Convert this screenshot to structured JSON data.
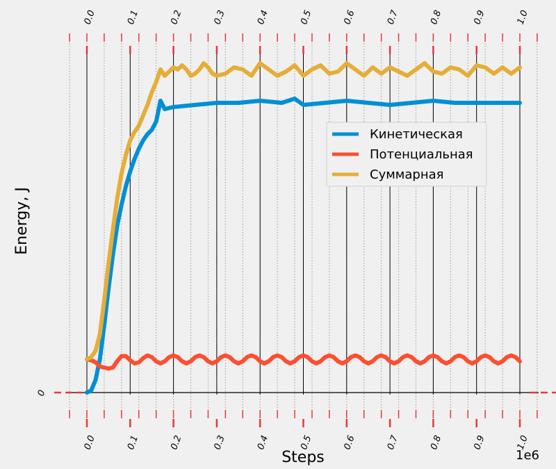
{
  "chart_data": {
    "type": "line",
    "xlabel": "Steps",
    "ylabel": "Energy, J",
    "x_offset_label": "1e6",
    "xlim": [
      0,
      1.0
    ],
    "x_ticks": [
      "0.0",
      "0.1",
      "0.2",
      "0.3",
      "0.4",
      "0.5",
      "0.6",
      "0.7",
      "0.8",
      "0.9",
      "1.0"
    ],
    "y_ticks": [
      "0"
    ],
    "grid": true,
    "legend_position": "center-right",
    "series": [
      {
        "name": "Кинетическая",
        "color": "#008fd5",
        "x": [
          0.0,
          0.01,
          0.02,
          0.03,
          0.04,
          0.05,
          0.06,
          0.07,
          0.08,
          0.09,
          0.1,
          0.11,
          0.12,
          0.13,
          0.14,
          0.15,
          0.16,
          0.17,
          0.18,
          0.2,
          0.25,
          0.3,
          0.35,
          0.4,
          0.45,
          0.48,
          0.5,
          0.55,
          0.6,
          0.65,
          0.7,
          0.75,
          0.8,
          0.85,
          0.9,
          0.95,
          1.0
        ],
        "y": [
          0.0,
          0.01,
          0.06,
          0.16,
          0.32,
          0.5,
          0.66,
          0.8,
          0.9,
          0.99,
          1.06,
          1.12,
          1.17,
          1.21,
          1.24,
          1.26,
          1.3,
          1.4,
          1.36,
          1.37,
          1.38,
          1.39,
          1.39,
          1.4,
          1.39,
          1.41,
          1.38,
          1.39,
          1.4,
          1.39,
          1.38,
          1.39,
          1.4,
          1.39,
          1.39,
          1.39,
          1.39
        ]
      },
      {
        "name": "Потенциальная",
        "color": "#fc4f30",
        "x": [
          0.0,
          0.01,
          0.02,
          0.03,
          0.04,
          0.05,
          0.06,
          0.07,
          0.08,
          0.09,
          0.1,
          0.11,
          0.12,
          0.13,
          0.14,
          0.15,
          0.16,
          0.17,
          0.18,
          0.19,
          0.2,
          0.21,
          0.22,
          0.23,
          0.24,
          0.25,
          0.26,
          0.27,
          0.28,
          0.29,
          0.3,
          0.31,
          0.32,
          0.33,
          0.34,
          0.35,
          0.36,
          0.37,
          0.38,
          0.39,
          0.4,
          0.41,
          0.42,
          0.43,
          0.44,
          0.45,
          0.46,
          0.47,
          0.48,
          0.49,
          0.5,
          0.51,
          0.52,
          0.53,
          0.54,
          0.55,
          0.56,
          0.57,
          0.58,
          0.59,
          0.6,
          0.61,
          0.62,
          0.63,
          0.64,
          0.65,
          0.66,
          0.67,
          0.68,
          0.69,
          0.7,
          0.71,
          0.72,
          0.73,
          0.74,
          0.75,
          0.76,
          0.77,
          0.78,
          0.79,
          0.8,
          0.81,
          0.82,
          0.83,
          0.84,
          0.85,
          0.86,
          0.87,
          0.88,
          0.89,
          0.9,
          0.91,
          0.92,
          0.93,
          0.94,
          0.95,
          0.96,
          0.97,
          0.98,
          0.99,
          1.0
        ],
        "y": [
          0.16,
          0.155,
          0.145,
          0.125,
          0.12,
          0.115,
          0.12,
          0.15,
          0.175,
          0.175,
          0.155,
          0.14,
          0.145,
          0.165,
          0.178,
          0.17,
          0.15,
          0.14,
          0.15,
          0.17,
          0.178,
          0.17,
          0.15,
          0.14,
          0.15,
          0.17,
          0.178,
          0.17,
          0.15,
          0.14,
          0.15,
          0.17,
          0.178,
          0.17,
          0.15,
          0.14,
          0.15,
          0.17,
          0.178,
          0.17,
          0.15,
          0.14,
          0.15,
          0.17,
          0.178,
          0.17,
          0.15,
          0.14,
          0.15,
          0.17,
          0.178,
          0.17,
          0.15,
          0.14,
          0.15,
          0.17,
          0.178,
          0.17,
          0.15,
          0.14,
          0.15,
          0.17,
          0.178,
          0.17,
          0.15,
          0.14,
          0.15,
          0.17,
          0.178,
          0.17,
          0.15,
          0.14,
          0.15,
          0.17,
          0.178,
          0.17,
          0.15,
          0.14,
          0.15,
          0.17,
          0.178,
          0.17,
          0.15,
          0.14,
          0.15,
          0.17,
          0.178,
          0.17,
          0.15,
          0.14,
          0.15,
          0.17,
          0.178,
          0.17,
          0.15,
          0.14,
          0.15,
          0.17,
          0.178,
          0.17,
          0.15
        ]
      },
      {
        "name": "Суммарная",
        "color": "#e5ae38",
        "x": [
          0.0,
          0.01,
          0.02,
          0.03,
          0.04,
          0.05,
          0.06,
          0.07,
          0.08,
          0.09,
          0.1,
          0.11,
          0.12,
          0.13,
          0.14,
          0.15,
          0.16,
          0.17,
          0.18,
          0.19,
          0.2,
          0.21,
          0.22,
          0.23,
          0.24,
          0.25,
          0.26,
          0.27,
          0.28,
          0.29,
          0.3,
          0.32,
          0.34,
          0.36,
          0.38,
          0.4,
          0.42,
          0.44,
          0.46,
          0.48,
          0.5,
          0.52,
          0.54,
          0.56,
          0.58,
          0.6,
          0.62,
          0.64,
          0.66,
          0.68,
          0.7,
          0.72,
          0.74,
          0.76,
          0.78,
          0.8,
          0.82,
          0.84,
          0.86,
          0.88,
          0.9,
          0.92,
          0.94,
          0.96,
          0.98,
          1.0
        ],
        "y": [
          0.16,
          0.17,
          0.2,
          0.28,
          0.44,
          0.62,
          0.78,
          0.93,
          1.05,
          1.14,
          1.21,
          1.25,
          1.28,
          1.33,
          1.38,
          1.44,
          1.49,
          1.55,
          1.52,
          1.54,
          1.56,
          1.55,
          1.57,
          1.55,
          1.52,
          1.53,
          1.55,
          1.58,
          1.56,
          1.53,
          1.52,
          1.53,
          1.56,
          1.55,
          1.52,
          1.58,
          1.55,
          1.52,
          1.54,
          1.57,
          1.52,
          1.55,
          1.57,
          1.53,
          1.54,
          1.58,
          1.55,
          1.52,
          1.56,
          1.53,
          1.56,
          1.54,
          1.52,
          1.55,
          1.58,
          1.54,
          1.53,
          1.56,
          1.55,
          1.52,
          1.57,
          1.56,
          1.53,
          1.56,
          1.53,
          1.56
        ]
      }
    ]
  }
}
